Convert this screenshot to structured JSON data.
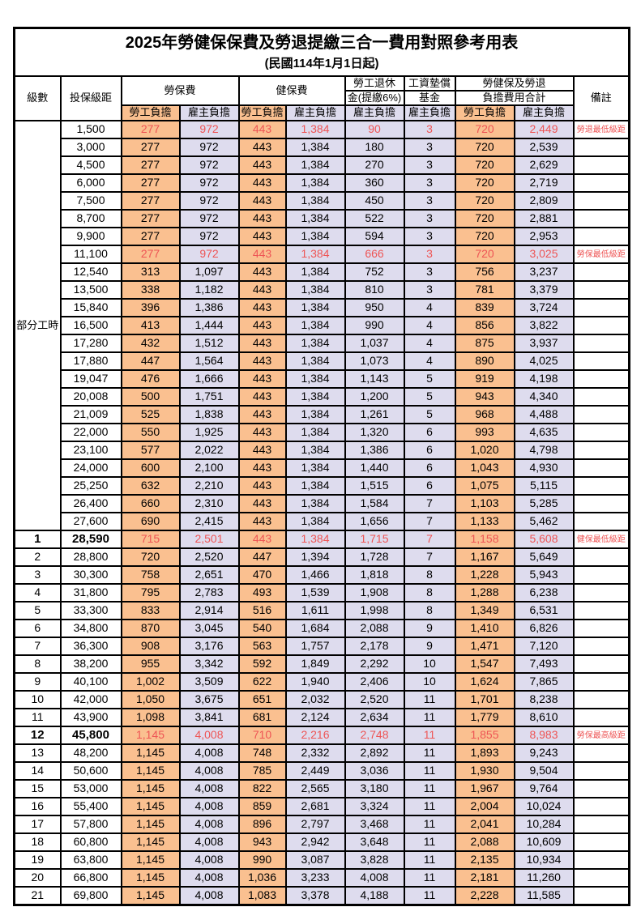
{
  "title": "2025年勞健保保費及勞退提繳三合一費用對照參考用表",
  "subtitle": "(民國114年1月1日起)",
  "colors": {
    "employee_bg": "#FAC090",
    "employer_bg": "#DEDCEE",
    "highlight_red": "#EE5555",
    "border": "#000000"
  },
  "header": {
    "level": "級數",
    "bracket": "投保級距",
    "labor": "勞保費",
    "health": "健保費",
    "pension_line1": "勞工退休",
    "pension_line2": "金(提繳6%)",
    "fund_line1": "工資墊償",
    "fund_line2": "基金",
    "total_line1": "勞健保及勞退",
    "total_line2": "負擔費用合計",
    "employee": "勞工負擔",
    "employer": "雇主負擔",
    "remark": "備註"
  },
  "part_time_label": "部分工時",
  "table": {
    "rows": [
      {
        "level": null,
        "bracket": "1,500",
        "v": [
          "277",
          "972",
          "443",
          "1,384",
          "90",
          "3",
          "720",
          "2,449"
        ],
        "remark": "勞退最低級距",
        "red": true,
        "bold": false
      },
      {
        "level": null,
        "bracket": "3,000",
        "v": [
          "277",
          "972",
          "443",
          "1,384",
          "180",
          "3",
          "720",
          "2,539"
        ],
        "remark": "",
        "red": false,
        "bold": false
      },
      {
        "level": null,
        "bracket": "4,500",
        "v": [
          "277",
          "972",
          "443",
          "1,384",
          "270",
          "3",
          "720",
          "2,629"
        ],
        "remark": "",
        "red": false,
        "bold": false
      },
      {
        "level": null,
        "bracket": "6,000",
        "v": [
          "277",
          "972",
          "443",
          "1,384",
          "360",
          "3",
          "720",
          "2,719"
        ],
        "remark": "",
        "red": false,
        "bold": false
      },
      {
        "level": null,
        "bracket": "7,500",
        "v": [
          "277",
          "972",
          "443",
          "1,384",
          "450",
          "3",
          "720",
          "2,809"
        ],
        "remark": "",
        "red": false,
        "bold": false
      },
      {
        "level": null,
        "bracket": "8,700",
        "v": [
          "277",
          "972",
          "443",
          "1,384",
          "522",
          "3",
          "720",
          "2,881"
        ],
        "remark": "",
        "red": false,
        "bold": false
      },
      {
        "level": null,
        "bracket": "9,900",
        "v": [
          "277",
          "972",
          "443",
          "1,384",
          "594",
          "3",
          "720",
          "2,953"
        ],
        "remark": "",
        "red": false,
        "bold": false
      },
      {
        "level": null,
        "bracket": "11,100",
        "v": [
          "277",
          "972",
          "443",
          "1,384",
          "666",
          "3",
          "720",
          "3,025"
        ],
        "remark": "勞保最低級距",
        "red": true,
        "bold": false
      },
      {
        "level": null,
        "bracket": "12,540",
        "v": [
          "313",
          "1,097",
          "443",
          "1,384",
          "752",
          "3",
          "756",
          "3,237"
        ],
        "remark": "",
        "red": false,
        "bold": false
      },
      {
        "level": null,
        "bracket": "13,500",
        "v": [
          "338",
          "1,182",
          "443",
          "1,384",
          "810",
          "3",
          "781",
          "3,379"
        ],
        "remark": "",
        "red": false,
        "bold": false
      },
      {
        "level": null,
        "bracket": "15,840",
        "v": [
          "396",
          "1,386",
          "443",
          "1,384",
          "950",
          "4",
          "839",
          "3,724"
        ],
        "remark": "",
        "red": false,
        "bold": false
      },
      {
        "level": null,
        "bracket": "16,500",
        "v": [
          "413",
          "1,444",
          "443",
          "1,384",
          "990",
          "4",
          "856",
          "3,822"
        ],
        "remark": "",
        "red": false,
        "bold": false
      },
      {
        "level": null,
        "bracket": "17,280",
        "v": [
          "432",
          "1,512",
          "443",
          "1,384",
          "1,037",
          "4",
          "875",
          "3,937"
        ],
        "remark": "",
        "red": false,
        "bold": false
      },
      {
        "level": null,
        "bracket": "17,880",
        "v": [
          "447",
          "1,564",
          "443",
          "1,384",
          "1,073",
          "4",
          "890",
          "4,025"
        ],
        "remark": "",
        "red": false,
        "bold": false
      },
      {
        "level": null,
        "bracket": "19,047",
        "v": [
          "476",
          "1,666",
          "443",
          "1,384",
          "1,143",
          "5",
          "919",
          "4,198"
        ],
        "remark": "",
        "red": false,
        "bold": false
      },
      {
        "level": null,
        "bracket": "20,008",
        "v": [
          "500",
          "1,751",
          "443",
          "1,384",
          "1,200",
          "5",
          "943",
          "4,340"
        ],
        "remark": "",
        "red": false,
        "bold": false
      },
      {
        "level": null,
        "bracket": "21,009",
        "v": [
          "525",
          "1,838",
          "443",
          "1,384",
          "1,261",
          "5",
          "968",
          "4,488"
        ],
        "remark": "",
        "red": false,
        "bold": false
      },
      {
        "level": null,
        "bracket": "22,000",
        "v": [
          "550",
          "1,925",
          "443",
          "1,384",
          "1,320",
          "6",
          "993",
          "4,635"
        ],
        "remark": "",
        "red": false,
        "bold": false
      },
      {
        "level": null,
        "bracket": "23,100",
        "v": [
          "577",
          "2,022",
          "443",
          "1,384",
          "1,386",
          "6",
          "1,020",
          "4,798"
        ],
        "remark": "",
        "red": false,
        "bold": false
      },
      {
        "level": null,
        "bracket": "24,000",
        "v": [
          "600",
          "2,100",
          "443",
          "1,384",
          "1,440",
          "6",
          "1,043",
          "4,930"
        ],
        "remark": "",
        "red": false,
        "bold": false
      },
      {
        "level": null,
        "bracket": "25,250",
        "v": [
          "632",
          "2,210",
          "443",
          "1,384",
          "1,515",
          "6",
          "1,075",
          "5,115"
        ],
        "remark": "",
        "red": false,
        "bold": false
      },
      {
        "level": null,
        "bracket": "26,400",
        "v": [
          "660",
          "2,310",
          "443",
          "1,384",
          "1,584",
          "7",
          "1,103",
          "5,285"
        ],
        "remark": "",
        "red": false,
        "bold": false
      },
      {
        "level": null,
        "bracket": "27,600",
        "v": [
          "690",
          "2,415",
          "443",
          "1,384",
          "1,656",
          "7",
          "1,133",
          "5,462"
        ],
        "remark": "",
        "red": false,
        "bold": false
      },
      {
        "level": "1",
        "bracket": "28,590",
        "v": [
          "715",
          "2,501",
          "443",
          "1,384",
          "1,715",
          "7",
          "1,158",
          "5,608"
        ],
        "remark": "健保最低級距",
        "red": true,
        "bold": true
      },
      {
        "level": "2",
        "bracket": "28,800",
        "v": [
          "720",
          "2,520",
          "447",
          "1,394",
          "1,728",
          "7",
          "1,167",
          "5,649"
        ],
        "remark": "",
        "red": false,
        "bold": false
      },
      {
        "level": "3",
        "bracket": "30,300",
        "v": [
          "758",
          "2,651",
          "470",
          "1,466",
          "1,818",
          "8",
          "1,228",
          "5,943"
        ],
        "remark": "",
        "red": false,
        "bold": false
      },
      {
        "level": "4",
        "bracket": "31,800",
        "v": [
          "795",
          "2,783",
          "493",
          "1,539",
          "1,908",
          "8",
          "1,288",
          "6,238"
        ],
        "remark": "",
        "red": false,
        "bold": false
      },
      {
        "level": "5",
        "bracket": "33,300",
        "v": [
          "833",
          "2,914",
          "516",
          "1,611",
          "1,998",
          "8",
          "1,349",
          "6,531"
        ],
        "remark": "",
        "red": false,
        "bold": false
      },
      {
        "level": "6",
        "bracket": "34,800",
        "v": [
          "870",
          "3,045",
          "540",
          "1,684",
          "2,088",
          "9",
          "1,410",
          "6,826"
        ],
        "remark": "",
        "red": false,
        "bold": false
      },
      {
        "level": "7",
        "bracket": "36,300",
        "v": [
          "908",
          "3,176",
          "563",
          "1,757",
          "2,178",
          "9",
          "1,471",
          "7,120"
        ],
        "remark": "",
        "red": false,
        "bold": false
      },
      {
        "level": "8",
        "bracket": "38,200",
        "v": [
          "955",
          "3,342",
          "592",
          "1,849",
          "2,292",
          "10",
          "1,547",
          "7,493"
        ],
        "remark": "",
        "red": false,
        "bold": false
      },
      {
        "level": "9",
        "bracket": "40,100",
        "v": [
          "1,002",
          "3,509",
          "622",
          "1,940",
          "2,406",
          "10",
          "1,624",
          "7,865"
        ],
        "remark": "",
        "red": false,
        "bold": false
      },
      {
        "level": "10",
        "bracket": "42,000",
        "v": [
          "1,050",
          "3,675",
          "651",
          "2,032",
          "2,520",
          "11",
          "1,701",
          "8,238"
        ],
        "remark": "",
        "red": false,
        "bold": false
      },
      {
        "level": "11",
        "bracket": "43,900",
        "v": [
          "1,098",
          "3,841",
          "681",
          "2,124",
          "2,634",
          "11",
          "1,779",
          "8,610"
        ],
        "remark": "",
        "red": false,
        "bold": false
      },
      {
        "level": "12",
        "bracket": "45,800",
        "v": [
          "1,145",
          "4,008",
          "710",
          "2,216",
          "2,748",
          "11",
          "1,855",
          "8,983"
        ],
        "remark": "勞保最高級距",
        "red": true,
        "bold": true
      },
      {
        "level": "13",
        "bracket": "48,200",
        "v": [
          "1,145",
          "4,008",
          "748",
          "2,332",
          "2,892",
          "11",
          "1,893",
          "9,243"
        ],
        "remark": "",
        "red": false,
        "bold": false
      },
      {
        "level": "14",
        "bracket": "50,600",
        "v": [
          "1,145",
          "4,008",
          "785",
          "2,449",
          "3,036",
          "11",
          "1,930",
          "9,504"
        ],
        "remark": "",
        "red": false,
        "bold": false
      },
      {
        "level": "15",
        "bracket": "53,000",
        "v": [
          "1,145",
          "4,008",
          "822",
          "2,565",
          "3,180",
          "11",
          "1,967",
          "9,764"
        ],
        "remark": "",
        "red": false,
        "bold": false
      },
      {
        "level": "16",
        "bracket": "55,400",
        "v": [
          "1,145",
          "4,008",
          "859",
          "2,681",
          "3,324",
          "11",
          "2,004",
          "10,024"
        ],
        "remark": "",
        "red": false,
        "bold": false
      },
      {
        "level": "17",
        "bracket": "57,800",
        "v": [
          "1,145",
          "4,008",
          "896",
          "2,797",
          "3,468",
          "11",
          "2,041",
          "10,284"
        ],
        "remark": "",
        "red": false,
        "bold": false
      },
      {
        "level": "18",
        "bracket": "60,800",
        "v": [
          "1,145",
          "4,008",
          "943",
          "2,942",
          "3,648",
          "11",
          "2,088",
          "10,609"
        ],
        "remark": "",
        "red": false,
        "bold": false
      },
      {
        "level": "19",
        "bracket": "63,800",
        "v": [
          "1,145",
          "4,008",
          "990",
          "3,087",
          "3,828",
          "11",
          "2,135",
          "10,934"
        ],
        "remark": "",
        "red": false,
        "bold": false
      },
      {
        "level": "20",
        "bracket": "66,800",
        "v": [
          "1,145",
          "4,008",
          "1,036",
          "3,233",
          "4,008",
          "11",
          "2,181",
          "11,260"
        ],
        "remark": "",
        "red": false,
        "bold": false
      },
      {
        "level": "21",
        "bracket": "69,800",
        "v": [
          "1,145",
          "4,008",
          "1,083",
          "3,378",
          "4,188",
          "11",
          "2,228",
          "11,585"
        ],
        "remark": "",
        "red": false,
        "bold": false
      }
    ]
  }
}
